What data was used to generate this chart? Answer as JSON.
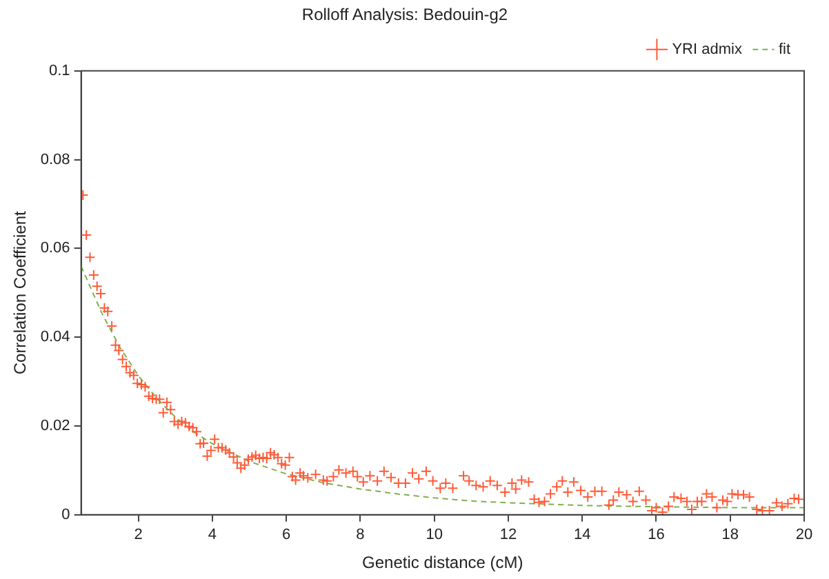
{
  "chart_data": {
    "type": "scatter",
    "title": "Rolloff Analysis: Bedouin-g2",
    "xlabel": "Genetic distance (cM)",
    "ylabel": "Correlation Coefficient",
    "xlim": [
      0.45,
      20
    ],
    "xticks": [
      2,
      4,
      6,
      8,
      10,
      12,
      14,
      16,
      18,
      20
    ],
    "ylim": [
      0,
      0.1
    ],
    "yticks": [
      0,
      0.02,
      0.04,
      0.06,
      0.08,
      0.1
    ],
    "grid": false,
    "legend": "top right",
    "series": [
      {
        "name": "YRI admix",
        "marker": "cross",
        "color": "#ff5a36",
        "x": [
          0.5,
          0.59,
          0.69,
          0.79,
          0.88,
          0.98,
          1.08,
          1.17,
          1.28,
          1.38,
          1.47,
          1.57,
          1.67,
          1.77,
          1.87,
          1.97,
          2.08,
          2.18,
          2.28,
          2.38,
          2.48,
          2.57,
          2.67,
          2.77,
          2.87,
          2.97,
          3.07,
          3.17,
          3.27,
          3.37,
          3.47,
          3.57,
          3.67,
          3.76,
          3.86,
          3.96,
          4.06,
          4.16,
          4.26,
          4.36,
          4.46,
          4.57,
          4.67,
          4.77,
          4.87,
          4.97,
          5.07,
          5.17,
          5.27,
          5.37,
          5.47,
          5.57,
          5.67,
          5.77,
          5.87,
          5.97,
          6.08,
          6.16,
          6.25,
          6.37,
          6.46,
          6.58,
          6.79,
          7.0,
          7.1,
          7.27,
          7.42,
          7.61,
          7.8,
          7.92,
          8.08,
          8.26,
          8.46,
          8.64,
          8.83,
          9.03,
          9.22,
          9.41,
          9.58,
          9.78,
          9.96,
          10.16,
          10.31,
          10.5,
          10.79,
          10.94,
          11.13,
          11.32,
          11.51,
          11.7,
          11.91,
          12.1,
          12.2,
          12.36,
          12.55,
          12.7,
          12.83,
          12.98,
          13.14,
          13.31,
          13.46,
          13.61,
          13.77,
          13.96,
          14.15,
          14.34,
          14.53,
          14.72,
          14.84,
          14.99,
          15.2,
          15.37,
          15.54,
          15.72,
          15.88,
          16.0,
          16.17,
          16.33,
          16.48,
          16.67,
          16.83,
          16.96,
          17.11,
          17.23,
          17.36,
          17.51,
          17.64,
          17.8,
          17.92,
          18.05,
          18.21,
          18.36,
          18.52,
          18.72,
          18.87,
          19.06,
          19.25,
          19.4,
          19.56,
          19.73,
          19.85
        ],
        "values": [
          0.072,
          0.063,
          0.058,
          0.054,
          0.0515,
          0.0498,
          0.0466,
          0.0458,
          0.0425,
          0.0382,
          0.037,
          0.035,
          0.0334,
          0.032,
          0.0314,
          0.0296,
          0.0293,
          0.0288,
          0.0267,
          0.0262,
          0.026,
          0.026,
          0.023,
          0.0253,
          0.0237,
          0.021,
          0.0204,
          0.021,
          0.0207,
          0.0199,
          0.0196,
          0.0187,
          0.016,
          0.0161,
          0.0132,
          0.0145,
          0.017,
          0.0151,
          0.0151,
          0.0146,
          0.0139,
          0.013,
          0.0117,
          0.0105,
          0.0112,
          0.0125,
          0.013,
          0.0134,
          0.0127,
          0.0129,
          0.0127,
          0.014,
          0.0135,
          0.0129,
          0.0115,
          0.0112,
          0.0129,
          0.0086,
          0.0078,
          0.0094,
          0.0088,
          0.0083,
          0.0091,
          0.0078,
          0.0076,
          0.0086,
          0.0101,
          0.0094,
          0.0098,
          0.0086,
          0.0074,
          0.0088,
          0.0076,
          0.0098,
          0.0084,
          0.0071,
          0.0071,
          0.0094,
          0.0081,
          0.0098,
          0.0076,
          0.006,
          0.0071,
          0.006,
          0.0088,
          0.0076,
          0.0066,
          0.0063,
          0.0076,
          0.0066,
          0.0051,
          0.0071,
          0.0058,
          0.0078,
          0.0074,
          0.0035,
          0.0028,
          0.003,
          0.0047,
          0.0063,
          0.0076,
          0.0051,
          0.0074,
          0.0055,
          0.004,
          0.0053,
          0.0053,
          0.0022,
          0.0033,
          0.0051,
          0.0045,
          0.003,
          0.0053,
          0.0033,
          0.0009,
          0.0016,
          0.0006,
          0.0019,
          0.004,
          0.0037,
          0.003,
          0.0012,
          0.003,
          0.003,
          0.0047,
          0.004,
          0.0016,
          0.0033,
          0.003,
          0.0047,
          0.0045,
          0.0045,
          0.004,
          0.0012,
          0.0009,
          0.0009,
          0.0027,
          0.0019,
          0.0025,
          0.0037,
          0.0035
        ]
      },
      {
        "name": "fit",
        "type": "line",
        "marker": "none",
        "line_style": "dashed",
        "color": "#7fb04a",
        "x": [
          0.45,
          1,
          1.5,
          2,
          2.5,
          3,
          3.5,
          4,
          5,
          6,
          7,
          8,
          9,
          10,
          11,
          12,
          14,
          16,
          18,
          20
        ],
        "values": [
          0.056,
          0.0456,
          0.0377,
          0.0313,
          0.0262,
          0.022,
          0.0186,
          0.016,
          0.012,
          0.0092,
          0.0072,
          0.0058,
          0.0047,
          0.0038,
          0.0031,
          0.0027,
          0.0021,
          0.0018,
          0.0016,
          0.0016
        ]
      }
    ]
  }
}
